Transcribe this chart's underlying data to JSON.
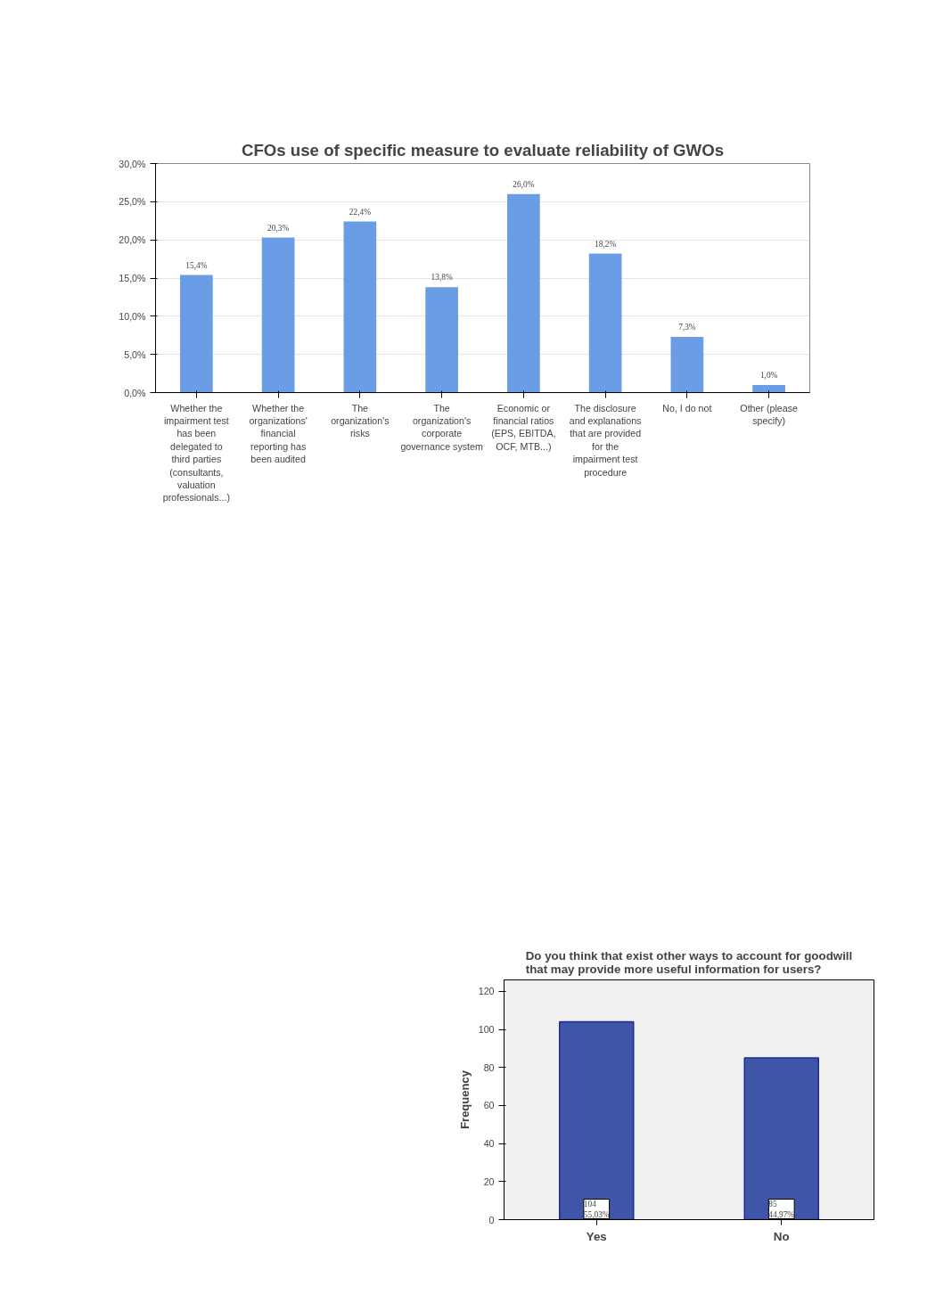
{
  "chart_data": [
    {
      "type": "bar",
      "title": "CFOs use of specific measure to evaluate reliability of GWOs",
      "categories": [
        "Whether the impairment test has been delegated to third parties (consultants, valuation professionals...)",
        "Whether the organizations' financial reporting has been audited",
        "The organization's risks",
        "The organization's corporate governance system",
        "Economic or financial ratios (EPS, EBITDA, OCF, MTB...)",
        "The disclosure and explanations that are provided for the impairment test procedure",
        "No, I do not",
        "Other (please specify)"
      ],
      "values": [
        15.4,
        20.3,
        22.4,
        13.8,
        26.0,
        18.2,
        7.3,
        1.0
      ],
      "value_labels": [
        "15,4%",
        "20,3%",
        "22,4%",
        "13,8%",
        "26,0%",
        "18,2%",
        "7,3%",
        "1,0%"
      ],
      "color": "#6a9de6",
      "ylim": [
        0,
        30
      ],
      "yticks": [
        {
          "value": 0,
          "label": "0,0%"
        },
        {
          "value": 5,
          "label": "5,0%"
        },
        {
          "value": 10,
          "label": "10,0%"
        },
        {
          "value": 15,
          "label": "15,0%"
        },
        {
          "value": 20,
          "label": "20,0%"
        },
        {
          "value": 25,
          "label": "25,0%"
        },
        {
          "value": 30,
          "label": "30,0%"
        }
      ],
      "grid": "y"
    },
    {
      "type": "bar",
      "title": "Do you think that exist other ways to account for goodwill that may provide more useful information for users?",
      "ylabel": "Frequency",
      "categories": [
        "Yes",
        "No"
      ],
      "values": [
        104,
        85
      ],
      "value_labels": [
        "104\n55,03%",
        "85\n44,97%"
      ],
      "color": "#3f56a8",
      "ylim": [
        0,
        126
      ],
      "yticks": [
        0,
        20,
        40,
        60,
        80,
        100,
        120
      ]
    }
  ]
}
